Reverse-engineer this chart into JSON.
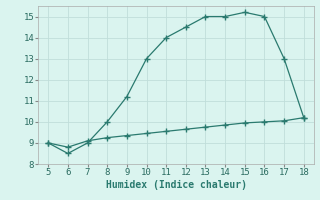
{
  "title": "",
  "xlabel": "Humidex (Indice chaleur)",
  "background_color": "#daf4ef",
  "line_color": "#2a7a6f",
  "grid_color": "#c0deda",
  "x_data": [
    5,
    6,
    7,
    8,
    9,
    10,
    11,
    12,
    13,
    14,
    15,
    16,
    17,
    18
  ],
  "y_upper": [
    9.0,
    8.5,
    9.0,
    10.0,
    11.2,
    13.0,
    14.0,
    14.5,
    15.0,
    15.0,
    15.2,
    15.0,
    13.0,
    10.2
  ],
  "y_lower": [
    9.0,
    8.8,
    9.1,
    9.25,
    9.35,
    9.45,
    9.55,
    9.65,
    9.75,
    9.85,
    9.95,
    10.0,
    10.05,
    10.2
  ],
  "xlim": [
    4.5,
    18.5
  ],
  "ylim": [
    8,
    15.5
  ],
  "xticks": [
    5,
    6,
    7,
    8,
    9,
    10,
    11,
    12,
    13,
    14,
    15,
    16,
    17,
    18
  ],
  "yticks": [
    8,
    9,
    10,
    11,
    12,
    13,
    14,
    15
  ],
  "marker": "+",
  "markersize": 4,
  "linewidth": 0.9,
  "xlabel_fontsize": 7,
  "tick_fontsize": 6.5,
  "dpi": 100
}
